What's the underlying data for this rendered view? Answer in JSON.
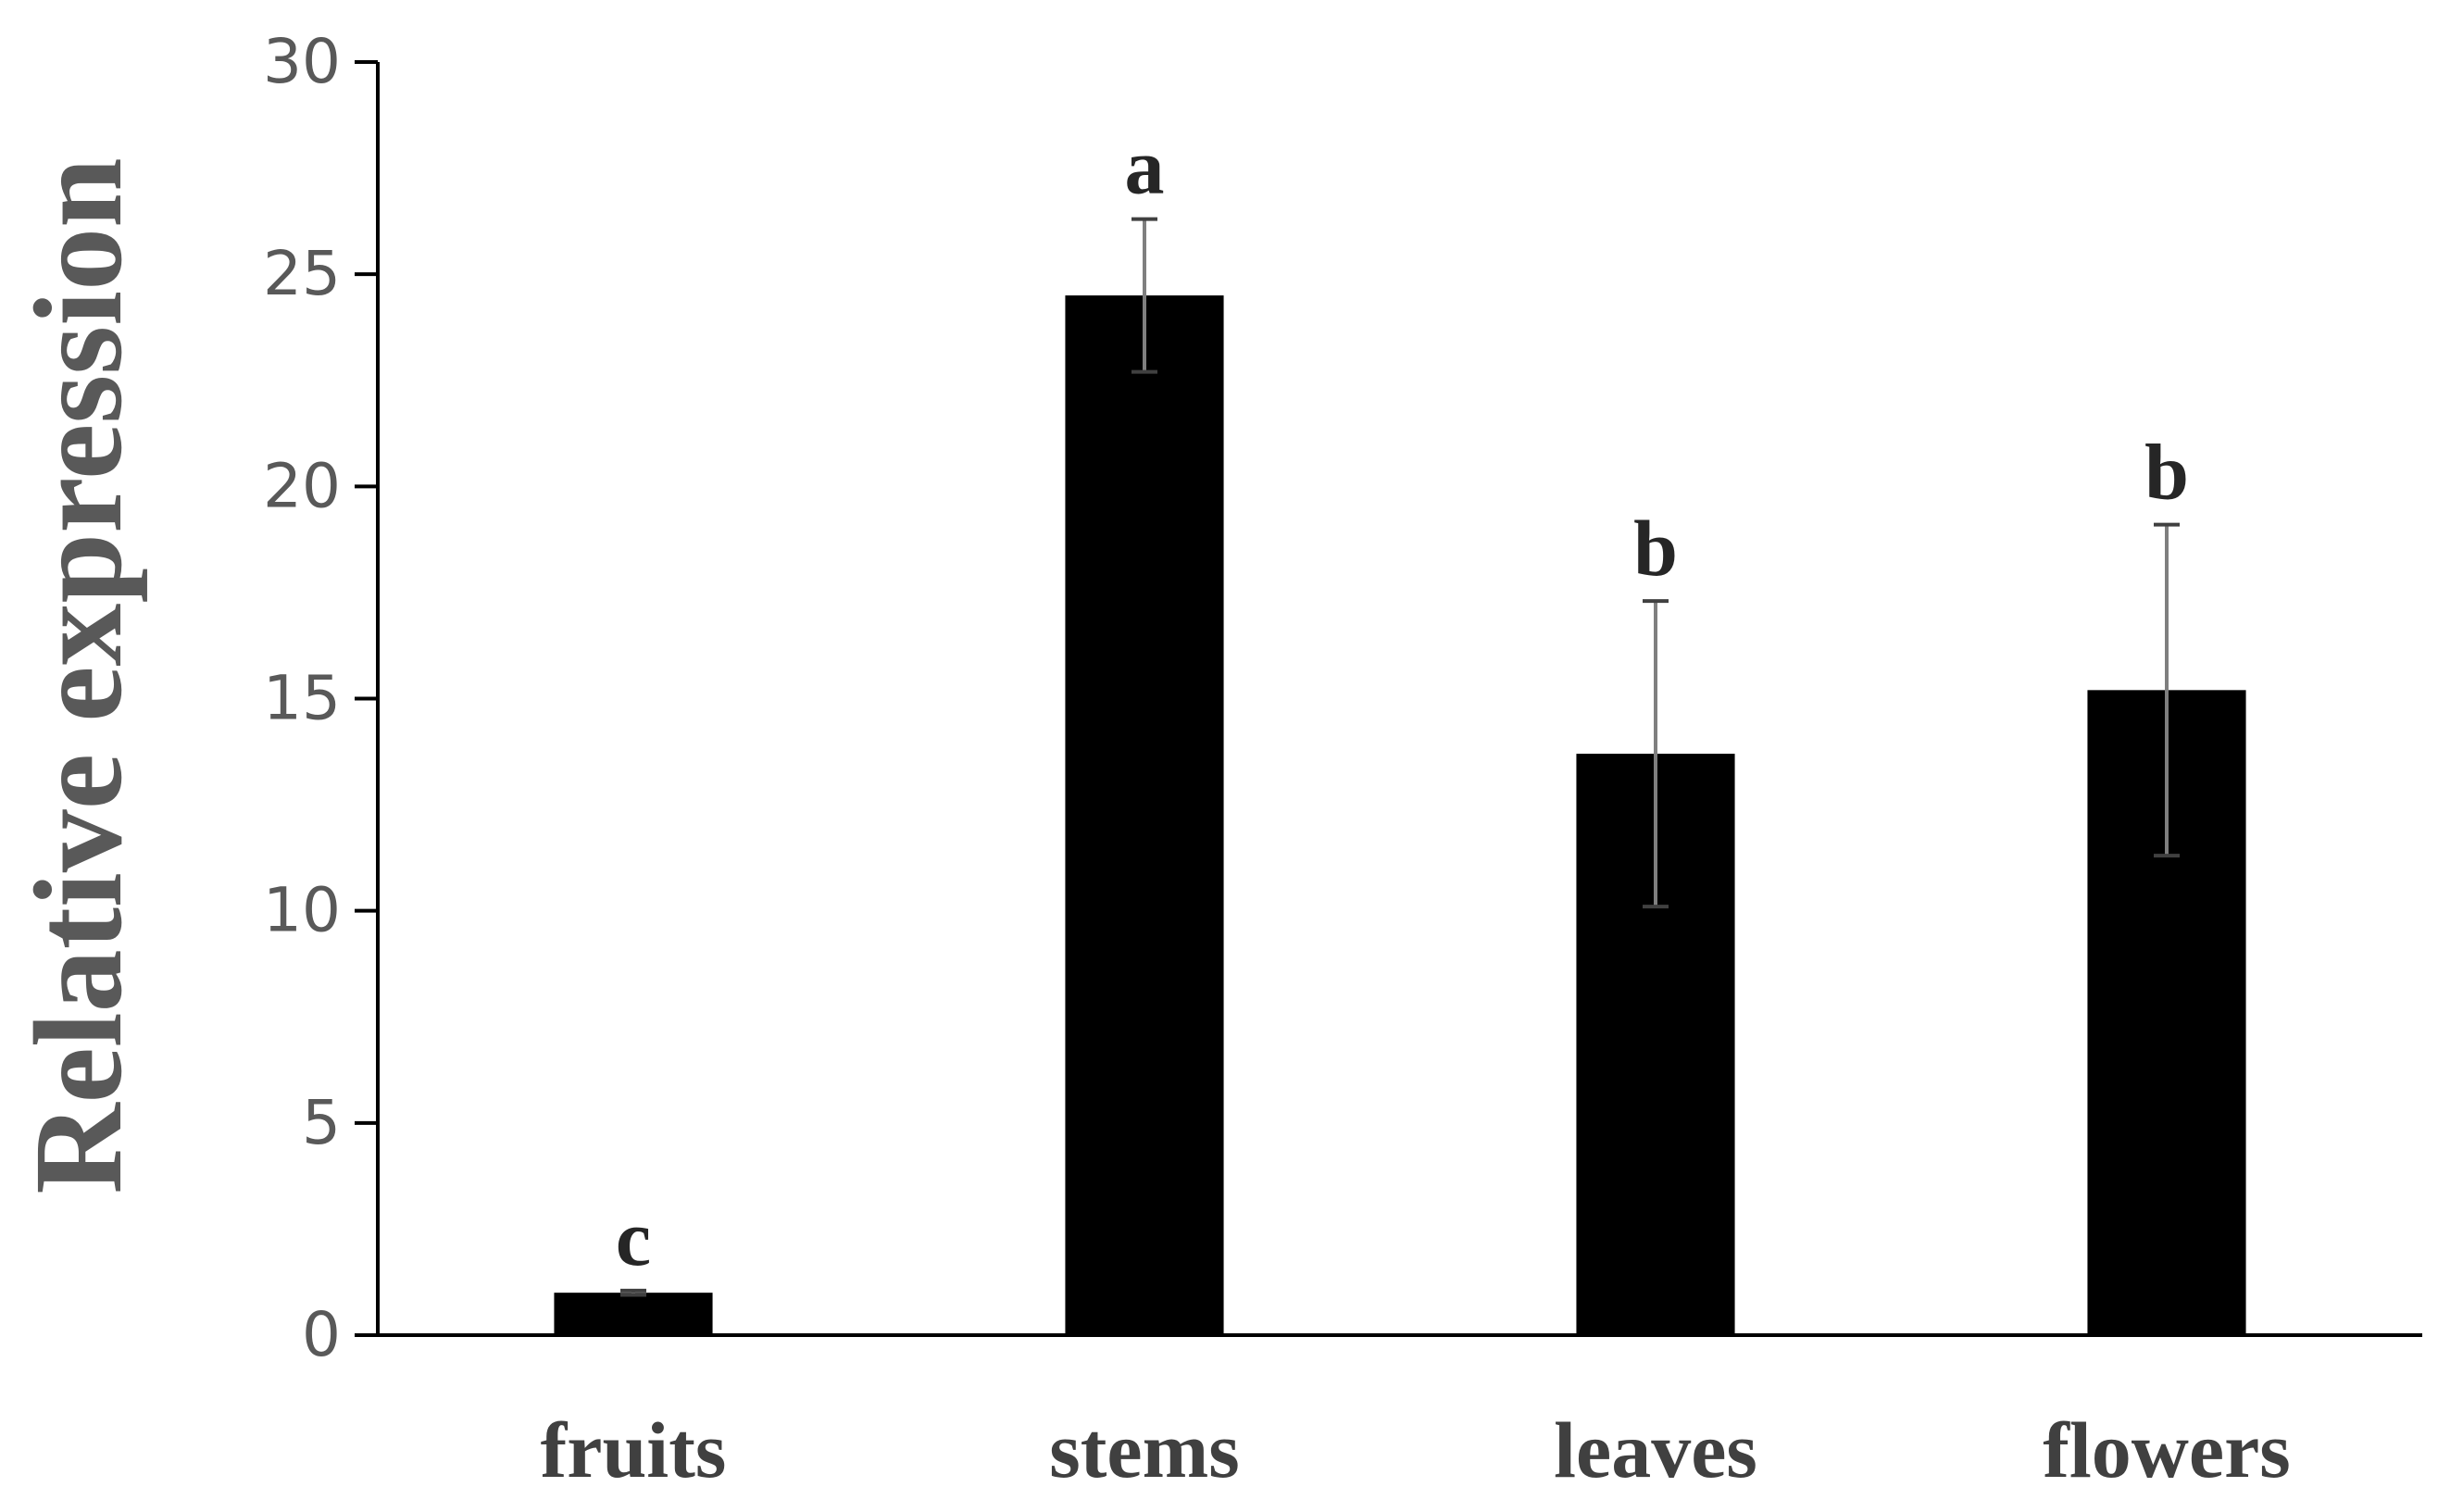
{
  "chart_data": {
    "type": "bar",
    "y_label": "Relative expression",
    "categories": [
      "fruits",
      "stems",
      "leaves",
      "flowers"
    ],
    "values": [
      1.0,
      24.5,
      13.7,
      15.2
    ],
    "errors": [
      0.05,
      1.8,
      3.6,
      3.9
    ],
    "annotations": [
      "c",
      "a",
      "b",
      "b"
    ],
    "color": "#000000",
    "error_color": "#7f7f7f",
    "ylim": [
      0,
      30
    ],
    "yticks": [
      0,
      5,
      10,
      15,
      20,
      25,
      30
    ],
    "grid": false
  }
}
